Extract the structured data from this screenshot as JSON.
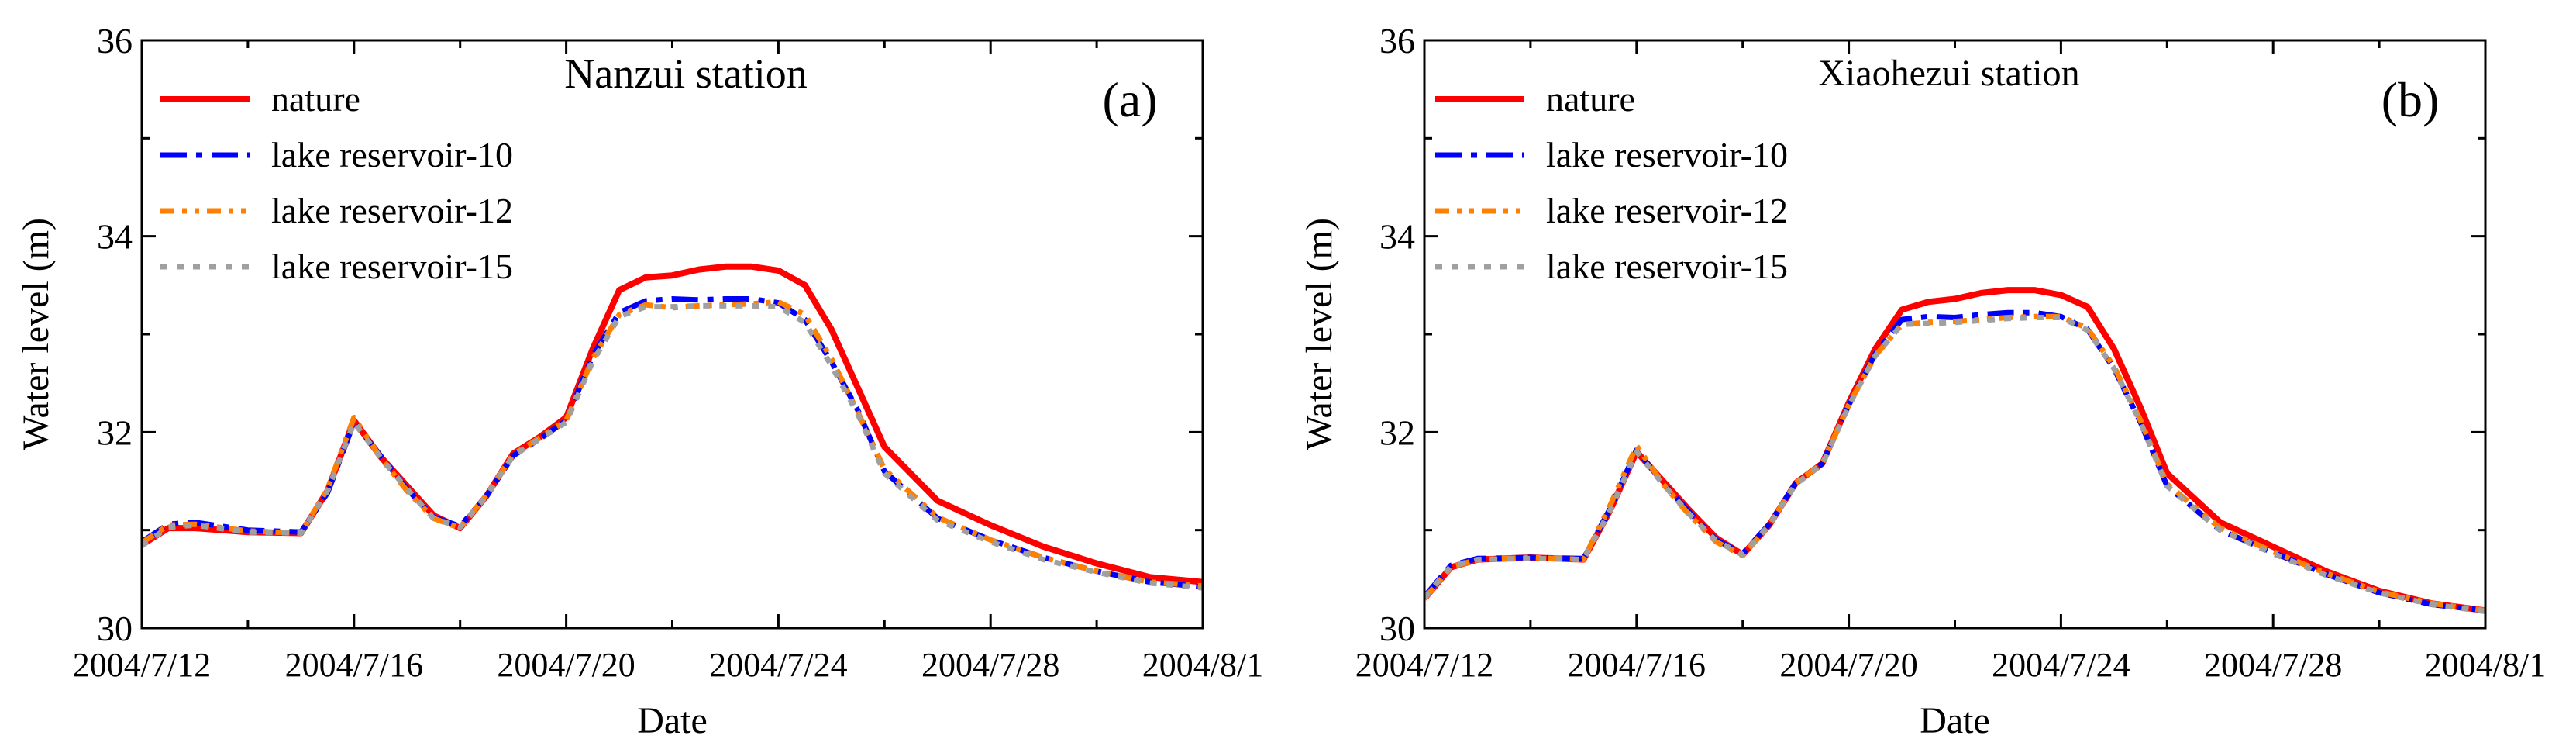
{
  "chart_data": [
    {
      "type": "line",
      "panel_label": "(a)",
      "title": "Nanzui station",
      "xlabel": "Date",
      "ylabel": "Water level (m)",
      "xlim": [
        0,
        20
      ],
      "ylim": [
        30,
        36
      ],
      "x_ticks": [
        {
          "day": 0,
          "label": "2004/7/12"
        },
        {
          "day": 4,
          "label": "2004/7/16"
        },
        {
          "day": 8,
          "label": "2004/7/20"
        },
        {
          "day": 12,
          "label": "2004/7/24"
        },
        {
          "day": 16,
          "label": "2004/7/28"
        },
        {
          "day": 20,
          "label": "2004/8/1"
        }
      ],
      "y_ticks": [
        {
          "value": 30,
          "label": "30"
        },
        {
          "value": 32,
          "label": "32"
        },
        {
          "value": 34,
          "label": "34"
        },
        {
          "value": 36,
          "label": "36"
        }
      ],
      "legend_position": "top-left",
      "series": [
        {
          "name": "nature",
          "color": "#ff0000",
          "style": "solid",
          "x": [
            0,
            0.5,
            1,
            2,
            3,
            3.5,
            4,
            4.5,
            5,
            5.5,
            6,
            6.5,
            7,
            7.5,
            8,
            8.5,
            9,
            9.5,
            10,
            10.5,
            11,
            11.5,
            12,
            12.5,
            13,
            13.5,
            14,
            15,
            16,
            17,
            18,
            19,
            20
          ],
          "y": [
            30.85,
            31.02,
            31.02,
            30.98,
            30.97,
            31.4,
            32.12,
            31.75,
            31.45,
            31.15,
            31.02,
            31.35,
            31.78,
            31.95,
            32.15,
            32.85,
            33.45,
            33.58,
            33.6,
            33.66,
            33.69,
            33.69,
            33.65,
            33.5,
            33.05,
            32.45,
            31.85,
            31.3,
            31.05,
            30.83,
            30.66,
            30.52,
            30.47
          ]
        },
        {
          "name": "lake reservoir-10",
          "color": "#0000ff",
          "style": "dashdot",
          "x": [
            0,
            0.5,
            1,
            2,
            3,
            3.5,
            4,
            4.5,
            5,
            5.5,
            6,
            6.5,
            7,
            7.5,
            8,
            8.5,
            9,
            9.5,
            10,
            10.5,
            11,
            11.5,
            12,
            12.5,
            13,
            13.5,
            14,
            15,
            16,
            17,
            18,
            19,
            20
          ],
          "y": [
            30.88,
            31.06,
            31.08,
            31.0,
            30.98,
            31.38,
            32.1,
            31.76,
            31.42,
            31.13,
            31.04,
            31.35,
            31.76,
            31.93,
            32.12,
            32.78,
            33.22,
            33.34,
            33.36,
            33.35,
            33.36,
            33.36,
            33.32,
            33.15,
            32.72,
            32.22,
            31.6,
            31.12,
            30.9,
            30.72,
            30.58,
            30.47,
            30.42
          ]
        },
        {
          "name": "lake reservoir-12",
          "color": "#ff8000",
          "style": "dashdotdot",
          "x": [
            0,
            0.5,
            1,
            2,
            3,
            3.5,
            4,
            4.5,
            5,
            5.5,
            6,
            6.5,
            7,
            7.5,
            8,
            8.5,
            9,
            9.5,
            10,
            10.5,
            11,
            11.5,
            12,
            12.5,
            13,
            13.5,
            14,
            15,
            16,
            17,
            18,
            19,
            20
          ],
          "y": [
            30.87,
            31.05,
            31.06,
            30.99,
            30.97,
            31.42,
            32.15,
            31.74,
            31.4,
            31.12,
            31.02,
            31.36,
            31.77,
            31.94,
            32.12,
            32.75,
            33.2,
            33.3,
            33.27,
            33.29,
            33.3,
            33.31,
            33.33,
            33.2,
            32.75,
            32.2,
            31.62,
            31.13,
            30.9,
            30.72,
            30.58,
            30.47,
            30.43
          ]
        },
        {
          "name": "lake reservoir-15",
          "color": "#a0a0a0",
          "style": "dotted",
          "x": [
            0,
            0.5,
            1,
            2,
            3,
            3.5,
            4,
            4.5,
            5,
            5.5,
            6,
            6.5,
            7,
            7.5,
            8,
            8.5,
            9,
            9.5,
            10,
            10.5,
            11,
            11.5,
            12,
            12.5,
            13,
            13.5,
            14,
            15,
            16,
            17,
            18,
            19,
            20
          ],
          "y": [
            30.84,
            31.03,
            31.05,
            30.98,
            30.97,
            31.4,
            32.1,
            31.74,
            31.42,
            31.12,
            31.03,
            31.35,
            31.76,
            31.93,
            32.1,
            32.72,
            33.18,
            33.28,
            33.28,
            33.29,
            33.29,
            33.29,
            33.28,
            33.12,
            32.68,
            32.18,
            31.58,
            31.1,
            30.88,
            30.7,
            30.57,
            30.46,
            30.41
          ]
        }
      ]
    },
    {
      "type": "line",
      "panel_label": "(b)",
      "title": "Xiaohezui station",
      "xlabel": "Date",
      "ylabel": "Water level (m)",
      "xlim": [
        0,
        20
      ],
      "ylim": [
        30,
        36
      ],
      "x_ticks": [
        {
          "day": 0,
          "label": "2004/7/12"
        },
        {
          "day": 4,
          "label": "2004/7/16"
        },
        {
          "day": 8,
          "label": "2004/7/20"
        },
        {
          "day": 12,
          "label": "2004/7/24"
        },
        {
          "day": 16,
          "label": "2004/7/28"
        },
        {
          "day": 20,
          "label": "2004/8/1"
        }
      ],
      "y_ticks": [
        {
          "value": 30,
          "label": "30"
        },
        {
          "value": 32,
          "label": "32"
        },
        {
          "value": 34,
          "label": "34"
        },
        {
          "value": 36,
          "label": "36"
        }
      ],
      "legend_position": "top-left",
      "series": [
        {
          "name": "nature",
          "color": "#ff0000",
          "style": "solid",
          "x": [
            0,
            0.5,
            1,
            2,
            3,
            3.5,
            4,
            4.5,
            5,
            5.5,
            6,
            6.5,
            7,
            7.5,
            8,
            8.5,
            9,
            9.5,
            10,
            10.5,
            11,
            11.5,
            12,
            12.5,
            13,
            13.5,
            14,
            15,
            16,
            17,
            18,
            19,
            20
          ],
          "y": [
            30.3,
            30.62,
            30.7,
            30.72,
            30.7,
            31.2,
            31.8,
            31.5,
            31.2,
            30.92,
            30.75,
            31.05,
            31.48,
            31.68,
            32.3,
            32.85,
            33.25,
            33.33,
            33.36,
            33.42,
            33.45,
            33.45,
            33.4,
            33.28,
            32.85,
            32.25,
            31.58,
            31.08,
            30.83,
            30.58,
            30.38,
            30.25,
            30.18
          ]
        },
        {
          "name": "lake reservoir-10",
          "color": "#0000ff",
          "style": "dashdot",
          "x": [
            0,
            0.5,
            1,
            2,
            3,
            3.5,
            4,
            4.5,
            5,
            5.5,
            6,
            6.5,
            7,
            7.5,
            8,
            8.5,
            9,
            9.5,
            10,
            10.5,
            11,
            11.5,
            12,
            12.5,
            13,
            13.5,
            14,
            15,
            16,
            17,
            18,
            19,
            20
          ],
          "y": [
            30.32,
            30.64,
            30.71,
            30.72,
            30.71,
            31.22,
            31.82,
            31.48,
            31.18,
            30.9,
            30.76,
            31.06,
            31.48,
            31.68,
            32.28,
            32.8,
            33.15,
            33.18,
            33.17,
            33.2,
            33.22,
            33.22,
            33.18,
            33.05,
            32.65,
            32.1,
            31.45,
            31.0,
            30.77,
            30.55,
            30.36,
            30.24,
            30.18
          ]
        },
        {
          "name": "lake reservoir-12",
          "color": "#ff8000",
          "style": "dashdotdot",
          "x": [
            0,
            0.5,
            1,
            2,
            3,
            3.5,
            4,
            4.5,
            5,
            5.5,
            6,
            6.5,
            7,
            7.5,
            8,
            8.5,
            9,
            9.5,
            10,
            10.5,
            11,
            11.5,
            12,
            12.5,
            13,
            13.5,
            14,
            15,
            16,
            17,
            18,
            19,
            20
          ],
          "y": [
            30.3,
            30.62,
            30.7,
            30.72,
            30.7,
            31.25,
            31.86,
            31.47,
            31.15,
            30.88,
            30.74,
            31.05,
            31.48,
            31.68,
            32.28,
            32.78,
            33.1,
            33.12,
            33.13,
            33.15,
            33.17,
            33.18,
            33.18,
            33.06,
            32.67,
            32.12,
            31.47,
            31.02,
            30.78,
            30.56,
            30.37,
            30.25,
            30.18
          ]
        },
        {
          "name": "lake reservoir-15",
          "color": "#a0a0a0",
          "style": "dotted",
          "x": [
            0,
            0.5,
            1,
            2,
            3,
            3.5,
            4,
            4.5,
            5,
            5.5,
            6,
            6.5,
            7,
            7.5,
            8,
            8.5,
            9,
            9.5,
            10,
            10.5,
            11,
            11.5,
            12,
            12.5,
            13,
            13.5,
            14,
            15,
            16,
            17,
            18,
            19,
            20
          ],
          "y": [
            30.31,
            30.63,
            30.7,
            30.71,
            30.7,
            31.2,
            31.8,
            31.47,
            31.16,
            30.89,
            30.75,
            31.05,
            31.47,
            31.67,
            32.27,
            32.78,
            33.1,
            33.11,
            33.12,
            33.14,
            33.16,
            33.17,
            33.17,
            33.04,
            32.65,
            32.1,
            31.45,
            31.0,
            30.76,
            30.54,
            30.36,
            30.24,
            30.17
          ]
        }
      ]
    }
  ]
}
